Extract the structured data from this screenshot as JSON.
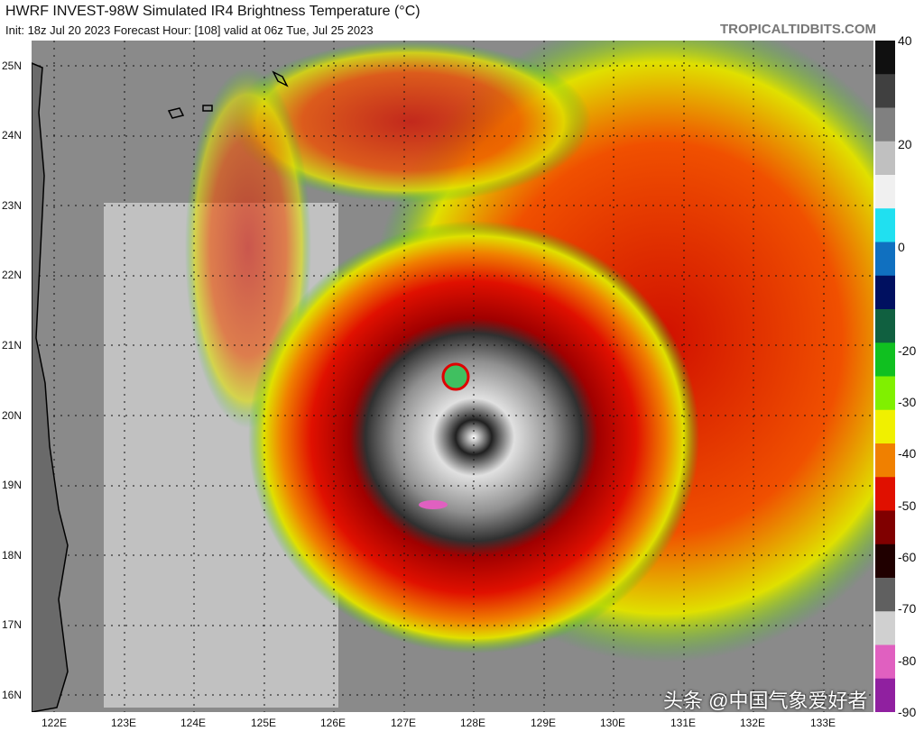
{
  "header": {
    "title": "HWRF INVEST-98W Simulated IR4 Brightness Temperature (°C)",
    "subtitle": "Init: 18z Jul 20 2023   Forecast Hour: [108]   valid at 06z Tue, Jul 25 2023",
    "brand": "TROPICALTIDBITS.COM"
  },
  "lat_labels": [
    "25N",
    "24N",
    "23N",
    "22N",
    "21N",
    "20N",
    "19N",
    "18N",
    "17N",
    "16N"
  ],
  "lon_labels": [
    "122E",
    "123E",
    "124E",
    "125E",
    "126E",
    "127E",
    "128E",
    "129E",
    "130E",
    "131E",
    "132E",
    "133E"
  ],
  "colorbar": {
    "labels": [
      "40",
      "20",
      "0",
      "-20",
      "-30",
      "-40",
      "-50",
      "-60",
      "-70",
      "-80",
      "-90"
    ],
    "colors": [
      "#101010",
      "#404040",
      "#808080",
      "#c0c0c0",
      "#f0f0f0",
      "#20e0f0",
      "#1070c0",
      "#001060",
      "#106040",
      "#10c020",
      "#80f000",
      "#f0f000",
      "#f08000",
      "#e01000",
      "#800000",
      "#200000",
      "#606060",
      "#d0d0d0",
      "#e060c0",
      "#9020a0"
    ]
  },
  "watermark": "头条 @中国气象爱好者"
}
